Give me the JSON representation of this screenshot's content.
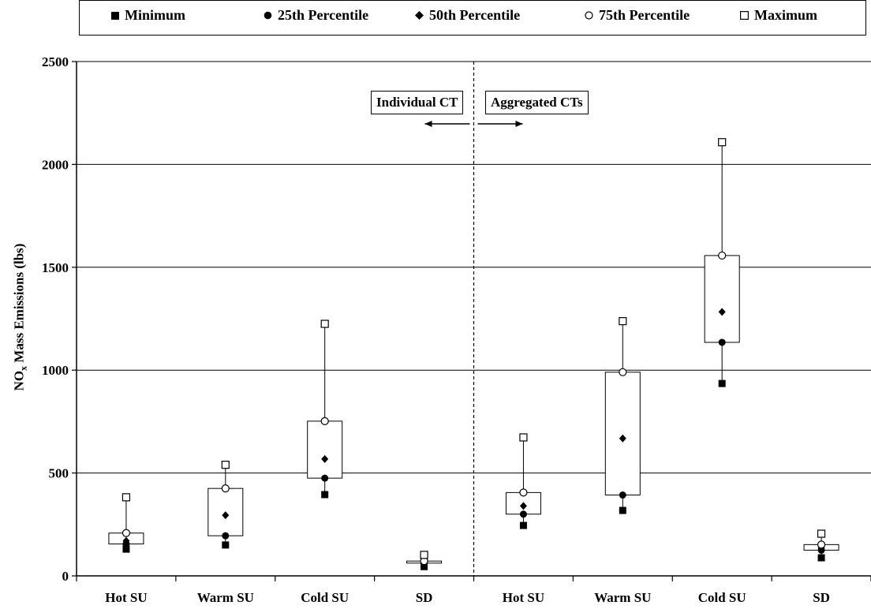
{
  "legend": {
    "items": [
      {
        "key": "min",
        "label": "Minimum",
        "marker": "filled-square"
      },
      {
        "key": "p25",
        "label": "25th Percentile",
        "marker": "filled-circle"
      },
      {
        "key": "p50",
        "label": "50th Percentile",
        "marker": "filled-diamond"
      },
      {
        "key": "p75",
        "label": "75th Percentile",
        "marker": "open-circle"
      },
      {
        "key": "max",
        "label": "Maximum",
        "marker": "open-square"
      }
    ]
  },
  "annotations": {
    "left_label": "Individual CT",
    "right_label": "Aggregated CTs"
  },
  "chart_data": {
    "type": "box",
    "ylabel_main": "NO",
    "ylabel_sub": "x",
    "ylabel_rest": " Mass Emissions (lbs)",
    "ylim": [
      0,
      2500
    ],
    "yticks": [
      0,
      500,
      1000,
      1500,
      2000,
      2500
    ],
    "grid": true,
    "legend_position": "top",
    "categories": [
      "Hot SU",
      "Warm SU",
      "Cold SU",
      "SD",
      "Hot SU",
      "Warm SU",
      "Cold SU",
      "SD"
    ],
    "groups": [
      "Individual CT",
      "Individual CT",
      "Individual CT",
      "Individual CT",
      "Aggregated CTs",
      "Aggregated CTs",
      "Aggregated CTs",
      "Aggregated CTs"
    ],
    "series": [
      {
        "name": "Minimum",
        "values": [
          130,
          150,
          395,
          45,
          245,
          318,
          935,
          88
        ]
      },
      {
        "name": "25th Percentile",
        "values": [
          155,
          195,
          475,
          62,
          300,
          393,
          1135,
          125
        ]
      },
      {
        "name": "50th Percentile",
        "values": [
          170,
          295,
          568,
          67,
          340,
          668,
          1283,
          135
        ]
      },
      {
        "name": "75th Percentile",
        "values": [
          208,
          425,
          752,
          72,
          405,
          990,
          1557,
          152
        ]
      },
      {
        "name": "Maximum",
        "values": [
          382,
          540,
          1225,
          102,
          673,
          1238,
          2108,
          205
        ]
      }
    ]
  }
}
